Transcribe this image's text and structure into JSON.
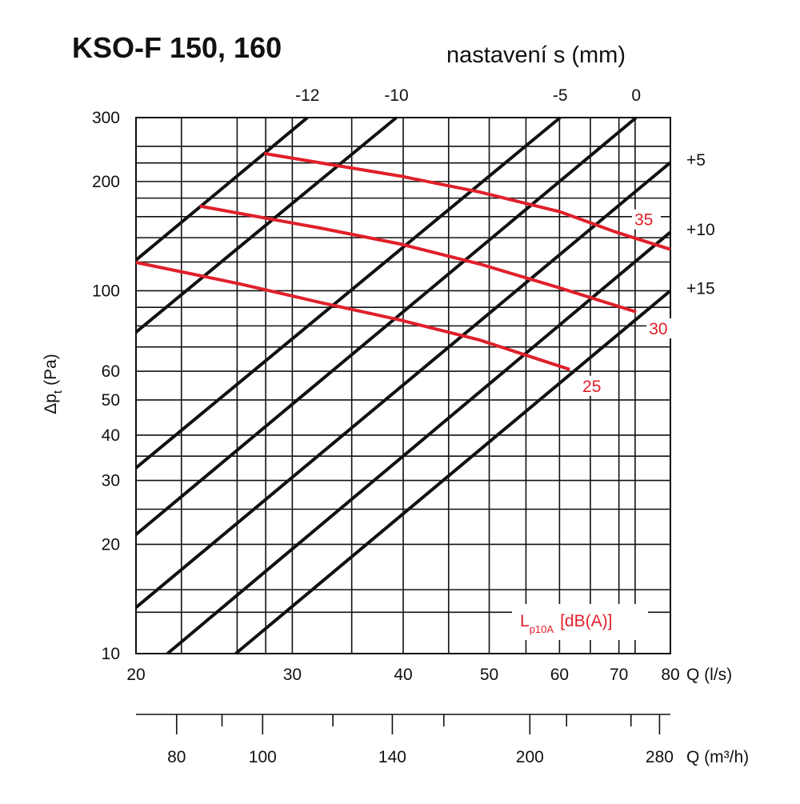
{
  "chart_data": {
    "type": "line",
    "title": "KSO-F 150, 160",
    "subtitle": "nastavení s (mm)",
    "xlabel": "Q (l/s)",
    "x2label": "Q (m³/h)",
    "ylabel": {
      "main": "Δp",
      "sub": "t",
      "unit": "(Pa)"
    },
    "sound_label": {
      "main": "L",
      "sub": "p10A",
      "unit": "[dB(A)]"
    },
    "log_x": true,
    "log_y": true,
    "grid": true,
    "xlim": [
      20,
      80
    ],
    "xticks": [
      20,
      30,
      40,
      50,
      60,
      70,
      80
    ],
    "xminor": [
      22.5,
      26,
      28,
      35,
      45,
      55,
      65,
      73
    ],
    "ylim": [
      10,
      300
    ],
    "yticks": [
      10,
      20,
      30,
      40,
      50,
      60,
      100,
      200,
      300
    ],
    "yminor": [
      13,
      15,
      25,
      35,
      70,
      80,
      90,
      120,
      140,
      160,
      180,
      225,
      250
    ],
    "x2lim": [
      72,
      288
    ],
    "x2ticks": [
      80,
      100,
      140,
      200,
      280
    ],
    "x2minor": [
      90,
      120,
      160,
      220,
      260
    ],
    "series": [
      {
        "name": "-12",
        "color": "#111111",
        "x": [
          20,
          31.2
        ],
        "values": [
          121.5,
          300
        ]
      },
      {
        "name": "-10",
        "color": "#111111",
        "x": [
          20,
          39.3
        ],
        "values": [
          76.9,
          300
        ]
      },
      {
        "name": "-5",
        "color": "#111111",
        "x": [
          20,
          60.1
        ],
        "values": [
          32.5,
          300
        ]
      },
      {
        "name": "0",
        "color": "#111111",
        "x": [
          20,
          73.2
        ],
        "values": [
          21.3,
          300
        ]
      },
      {
        "name": "+5",
        "color": "#111111",
        "x": [
          20,
          80
        ],
        "values": [
          13.4,
          225.7
        ]
      },
      {
        "name": "+10",
        "color": "#111111",
        "x": [
          21.7,
          80
        ],
        "values": [
          10,
          145
        ]
      },
      {
        "name": "+15",
        "color": "#111111",
        "x": [
          25.9,
          80
        ],
        "values": [
          10,
          100
        ]
      },
      {
        "name": "35",
        "color": "#e0202a",
        "x": [
          27.9,
          39.7,
          48.8,
          60.1,
          69.5,
          80
        ],
        "values": [
          238.8,
          207,
          187,
          165,
          145,
          130
        ]
      },
      {
        "name": "30",
        "color": "#e0202a",
        "x": [
          23.6,
          32.2,
          39.7,
          48.8,
          60.1,
          73.2
        ],
        "values": [
          171,
          149,
          134.5,
          118.5,
          101.7,
          87.4
        ]
      },
      {
        "name": "25",
        "color": "#e0202a",
        "x": [
          20,
          26.2,
          32.2,
          39.7,
          48.8,
          61.6
        ],
        "values": [
          119.7,
          104.4,
          92.9,
          83.0,
          73.1,
          60.7
        ]
      }
    ]
  }
}
